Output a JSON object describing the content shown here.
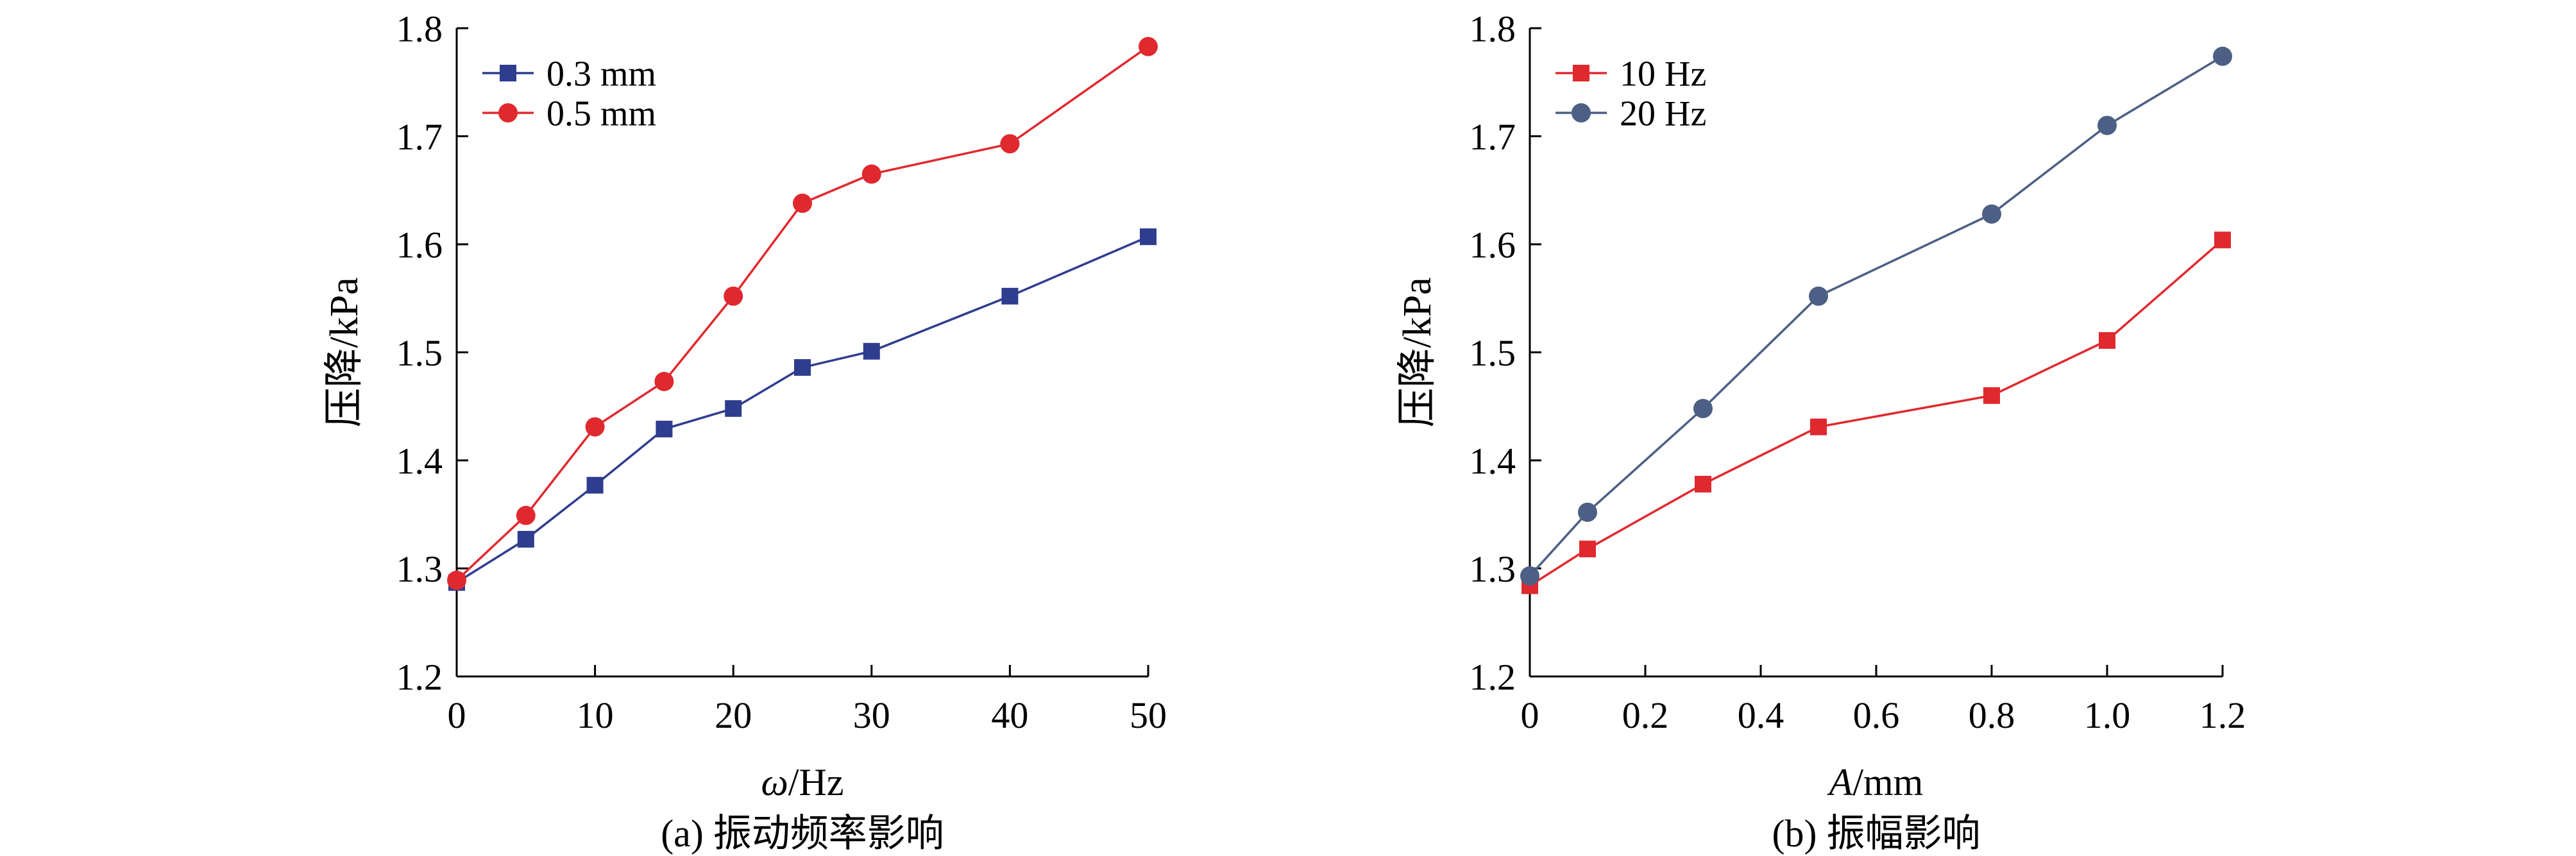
{
  "chart_data": [
    {
      "type": "line",
      "panel_id": "a",
      "ylabel": "压降/kPa",
      "xlabel_var": "ω",
      "xlabel_unit": "/Hz",
      "caption": "(a) 振动频率影响",
      "xlim": [
        0,
        50
      ],
      "ylim": [
        1.2,
        1.8
      ],
      "xticks": [
        "0",
        "10",
        "20",
        "30",
        "40",
        "50"
      ],
      "xtick_values": [
        0,
        10,
        20,
        30,
        40,
        50
      ],
      "yticks": [
        "1.2",
        "1.3",
        "1.4",
        "1.5",
        "1.6",
        "1.7",
        "1.8"
      ],
      "ytick_values": [
        1.2,
        1.3,
        1.4,
        1.5,
        1.6,
        1.7,
        1.8
      ],
      "grid": false,
      "legend_position": "top-left",
      "series": [
        {
          "name": "0.3 mm",
          "marker": "square",
          "color": "#2f3d8f",
          "x": [
            0,
            5,
            10,
            15,
            20,
            25,
            30,
            40,
            50
          ],
          "y": [
            1.287,
            1.327,
            1.377,
            1.429,
            1.448,
            1.486,
            1.501,
            1.552,
            1.607
          ]
        },
        {
          "name": "0.5 mm",
          "marker": "circle",
          "color": "#e0292f",
          "x": [
            0,
            5,
            10,
            15,
            20,
            25,
            30,
            40,
            50
          ],
          "y": [
            1.289,
            1.349,
            1.431,
            1.473,
            1.552,
            1.638,
            1.665,
            1.693,
            1.783
          ]
        }
      ]
    },
    {
      "type": "line",
      "panel_id": "b",
      "ylabel": "压降/kPa",
      "xlabel_var": "A",
      "xlabel_unit": "/mm",
      "caption": "(b) 振幅影响",
      "xlim": [
        0,
        1.2
      ],
      "ylim": [
        1.2,
        1.8
      ],
      "xticks": [
        "0",
        "0.2",
        "0.4",
        "0.6",
        "0.8",
        "1.0",
        "1.2"
      ],
      "xtick_values": [
        0,
        0.2,
        0.4,
        0.6,
        0.8,
        1.0,
        1.2
      ],
      "yticks": [
        "1.2",
        "1.3",
        "1.4",
        "1.5",
        "1.6",
        "1.7",
        "1.8"
      ],
      "ytick_values": [
        1.2,
        1.3,
        1.4,
        1.5,
        1.6,
        1.7,
        1.8
      ],
      "grid": false,
      "legend_position": "top-left",
      "series": [
        {
          "name": "10 Hz",
          "marker": "square",
          "color": "#e0292f",
          "x": [
            0,
            0.1,
            0.3,
            0.5,
            0.8,
            1.0,
            1.2
          ],
          "y": [
            1.284,
            1.318,
            1.378,
            1.431,
            1.46,
            1.511,
            1.604
          ]
        },
        {
          "name": "20 Hz",
          "marker": "circle",
          "color": "#4c5f84",
          "x": [
            0,
            0.1,
            0.3,
            0.5,
            0.8,
            1.0,
            1.2
          ],
          "y": [
            1.293,
            1.352,
            1.448,
            1.552,
            1.628,
            1.71,
            1.774
          ]
        }
      ]
    }
  ]
}
